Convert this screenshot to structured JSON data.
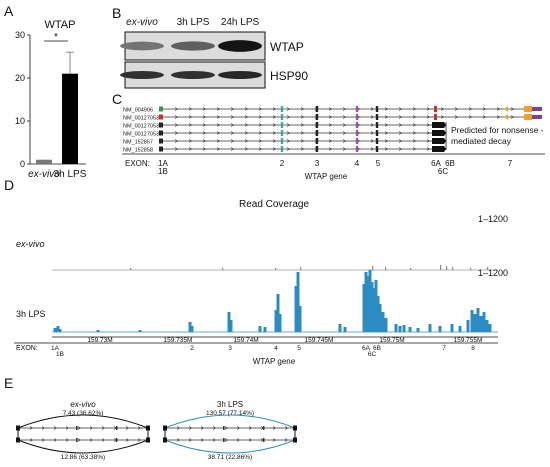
{
  "panels": {
    "a": "A",
    "b": "B",
    "c": "C",
    "d": "D",
    "e": "E"
  },
  "panel_a": {
    "title": "WTAP",
    "significance": "*",
    "chart_data": {
      "type": "bar",
      "categories": [
        "ex-vivo",
        "3h LPS"
      ],
      "values": [
        1,
        21
      ],
      "error_plus": [
        0,
        5
      ],
      "ylim": [
        0,
        30
      ],
      "yticks": [
        "0",
        "10",
        "20",
        "30"
      ],
      "colors": [
        "#777777",
        "#000000"
      ]
    }
  },
  "panel_b": {
    "lanes": [
      "ex-vivo",
      "3h LPS",
      "24h LPS"
    ],
    "blots": [
      {
        "label": "WTAP",
        "intensity": [
          0.45,
          0.55,
          0.95
        ]
      },
      {
        "label": "HSP90",
        "intensity": [
          0.8,
          0.8,
          0.85
        ]
      }
    ]
  },
  "panel_c": {
    "transcripts": [
      "NM_004906",
      "NM_001270531",
      "NM_001270532",
      "NM_001270533",
      "NM_152857",
      "NM_152858"
    ],
    "nmd_note_line1": "Predicted for nonsense -",
    "nmd_note_line2": "mediated decay",
    "exon_label": "EXON:",
    "exons_top": [
      "1A",
      "2",
      "3",
      "4",
      "5",
      "6A",
      "6B",
      "7"
    ],
    "exons_bottom": [
      "1B",
      "6C"
    ],
    "gene_label": "WTAP gene",
    "colors": {
      "exon_1a": "#2e9a3e",
      "exon_1b": "#d42a2a",
      "orange": "#f0a030",
      "purple": "#7b3fa0"
    }
  },
  "panel_d": {
    "title": "Read Coverage",
    "range_top": "1–1200",
    "range_bottom": "1–1200",
    "track1_label": "ex-vivo",
    "track2_label": "3h LPS",
    "coords": [
      "159.73M",
      "159.735M",
      "159.74M",
      "159.745M",
      "159.75M",
      "159.755M"
    ],
    "exon_label": "EXON:",
    "exons_top": [
      "1A",
      "2",
      "3",
      "4",
      "5",
      "6A",
      "6B",
      "7",
      "8"
    ],
    "exons_bottom": [
      "1B",
      "6C"
    ],
    "gene_label": "WTAP gene",
    "coverage_color": "#2b8cc4"
  },
  "panel_e": {
    "group1": {
      "title": "ex-vivo",
      "arc_top": "7.43 (36.62%)",
      "arc_bottom": "12.86 (63.38%)",
      "color": "#111111"
    },
    "group2": {
      "title": "3h LPS",
      "arc_top": "130.57 (77.14%)",
      "arc_bottom": "38.71 (22.86%)",
      "color": "#2b8cc4"
    }
  }
}
